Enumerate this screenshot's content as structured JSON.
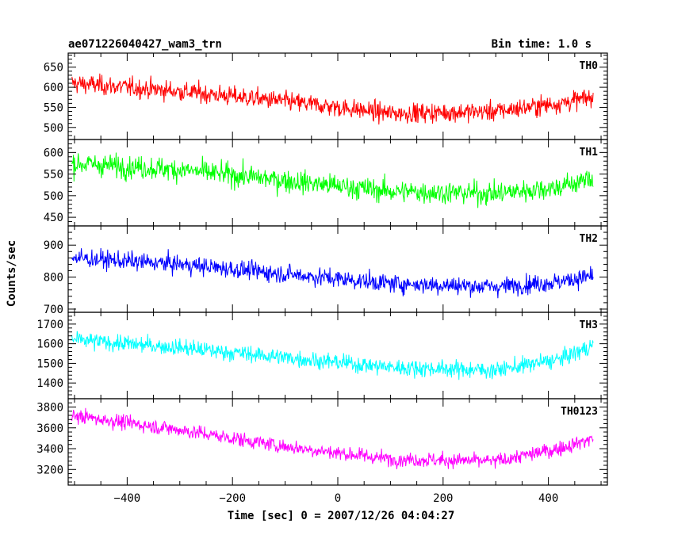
{
  "header": {
    "title": "ae071226040427_wam3_trn",
    "bin_time": "Bin time: 1.0 s"
  },
  "chart_data": {
    "type": "line",
    "xlabel": "Time [sec] 0 = 2007/12/26 04:04:27",
    "ylabel": "Counts/sec",
    "xlim": [
      -512,
      512
    ],
    "x_ticks": [
      -400,
      -200,
      0,
      200,
      400
    ],
    "x_tick_labels": [
      "−400",
      "−200",
      "0",
      "200",
      "400"
    ],
    "x_data_range": [
      -505,
      485
    ],
    "bin_seconds": 1.0,
    "grid": false,
    "panels": [
      {
        "name": "TH0",
        "color": "#ff0000",
        "ylim": [
          470,
          685
        ],
        "y_ticks": [
          500,
          550,
          600,
          650
        ],
        "noise": 24,
        "trend": [
          [
            -505,
            610
          ],
          [
            -300,
            590
          ],
          [
            -100,
            565
          ],
          [
            100,
            535
          ],
          [
            300,
            540
          ],
          [
            420,
            560
          ],
          [
            485,
            575
          ]
        ]
      },
      {
        "name": "TH1",
        "color": "#00ff00",
        "ylim": [
          430,
          630
        ],
        "y_ticks": [
          450,
          500,
          550,
          600
        ],
        "noise": 26,
        "trend": [
          [
            -505,
            575
          ],
          [
            -300,
            560
          ],
          [
            -100,
            535
          ],
          [
            100,
            510
          ],
          [
            300,
            505
          ],
          [
            420,
            520
          ],
          [
            485,
            540
          ]
        ]
      },
      {
        "name": "TH2",
        "color": "#0000ff",
        "ylim": [
          690,
          960
        ],
        "y_ticks": [
          700,
          800,
          900
        ],
        "noise": 28,
        "trend": [
          [
            -505,
            860
          ],
          [
            -300,
            840
          ],
          [
            -100,
            810
          ],
          [
            100,
            780
          ],
          [
            300,
            770
          ],
          [
            420,
            785
          ],
          [
            485,
            805
          ]
        ]
      },
      {
        "name": "TH3",
        "color": "#00ffff",
        "ylim": [
          1320,
          1760
        ],
        "y_ticks": [
          1400,
          1500,
          1600,
          1700
        ],
        "noise": 42,
        "trend": [
          [
            -505,
            1620
          ],
          [
            -300,
            1580
          ],
          [
            -100,
            1530
          ],
          [
            100,
            1480
          ],
          [
            300,
            1465
          ],
          [
            420,
            1520
          ],
          [
            485,
            1590
          ]
        ]
      },
      {
        "name": "TH0123",
        "color": "#ff00ff",
        "ylim": [
          3050,
          3880
        ],
        "y_ticks": [
          3200,
          3400,
          3600,
          3800
        ],
        "noise": 70,
        "trend": [
          [
            -505,
            3720
          ],
          [
            -300,
            3580
          ],
          [
            -100,
            3420
          ],
          [
            100,
            3300
          ],
          [
            300,
            3280
          ],
          [
            420,
            3400
          ],
          [
            485,
            3500
          ]
        ]
      }
    ]
  }
}
